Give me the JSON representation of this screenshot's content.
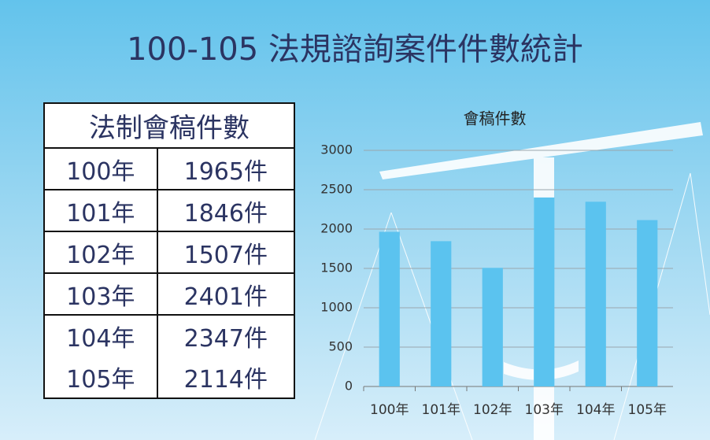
{
  "title": "100-105 法規諮詢案件件數統計",
  "table": {
    "header": "法制會稿件數",
    "rows": [
      [
        "100年",
        "1965件"
      ],
      [
        "101年",
        "1846件"
      ],
      [
        "102年",
        "1507件"
      ],
      [
        "103年",
        "2401件"
      ],
      [
        "104年",
        "2347件"
      ],
      [
        "105年",
        "2114件"
      ]
    ]
  },
  "chart_data": {
    "type": "bar",
    "title": "會稿件數",
    "categories": [
      "100年",
      "101年",
      "102年",
      "103年",
      "104年",
      "105年"
    ],
    "values": [
      1965,
      1846,
      1507,
      2401,
      2347,
      2114
    ],
    "color": "#5bc3ef",
    "ylim": [
      0,
      3000
    ],
    "yticks": [
      0,
      500,
      1000,
      1500,
      2000,
      2500,
      3000
    ],
    "grid": true
  }
}
